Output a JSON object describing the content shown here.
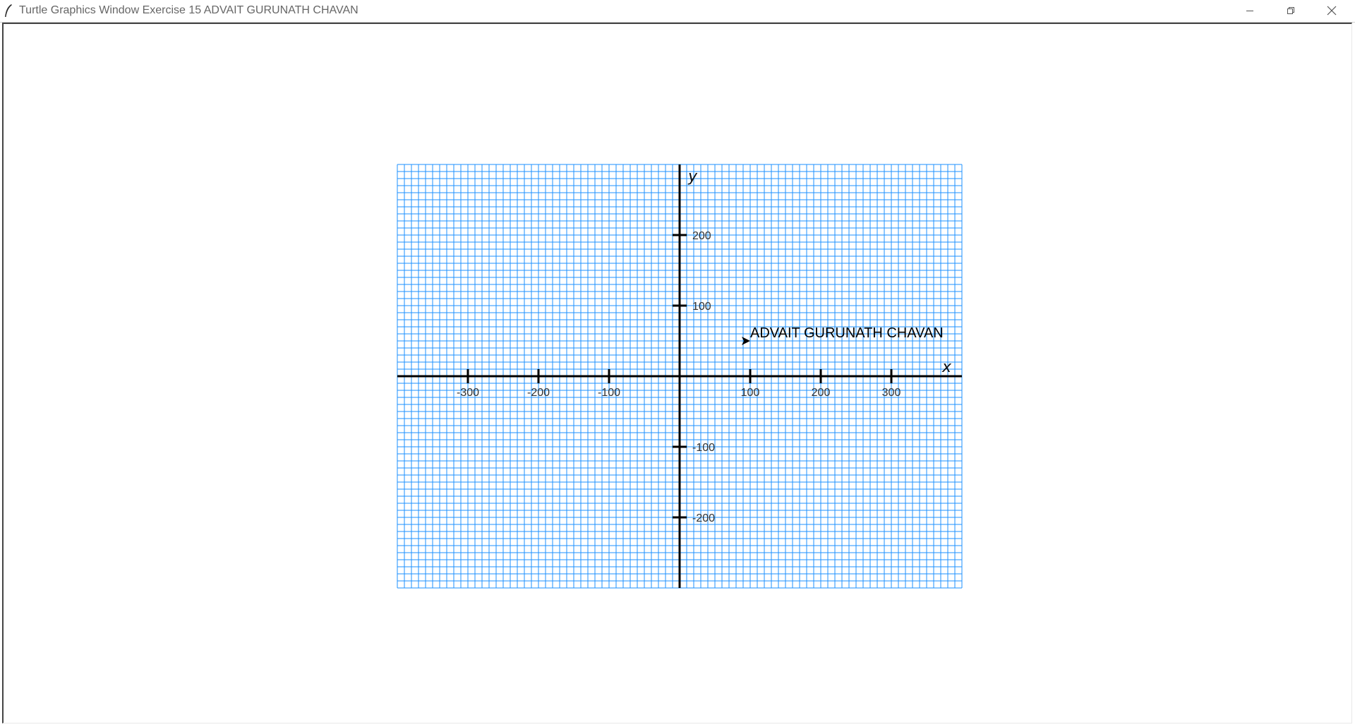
{
  "window": {
    "title": "Turtle Graphics Window Exercise 15 ADVAIT GURUNATH CHAVAN",
    "icon": "feather-icon",
    "controls": {
      "minimize_icon": "minimize-icon",
      "maximize_icon": "restore-icon",
      "close_icon": "close-icon"
    }
  },
  "chart_data": {
    "type": "line",
    "xlabel": "x",
    "ylabel": "y",
    "xlim": [
      -400,
      400
    ],
    "ylim": [
      -300,
      300
    ],
    "grid": true,
    "grid_step": 10,
    "grid_color": "#1e90ff",
    "axis_color": "#000000",
    "x_ticks": [
      -300,
      -200,
      -100,
      100,
      200,
      300
    ],
    "x_tick_labels": [
      "-300",
      "-200",
      "-100",
      "100",
      "200",
      "300"
    ],
    "y_ticks": [
      200,
      100,
      -100,
      -200
    ],
    "y_tick_labels": [
      "200",
      "100",
      "-100",
      "-200"
    ],
    "annotations": [
      {
        "text": "ADVAIT GURUNATH CHAVAN",
        "x": 100,
        "y": 50
      }
    ],
    "turtle": {
      "x": 100,
      "y": 50,
      "heading": 0,
      "shape": "arrow"
    }
  }
}
